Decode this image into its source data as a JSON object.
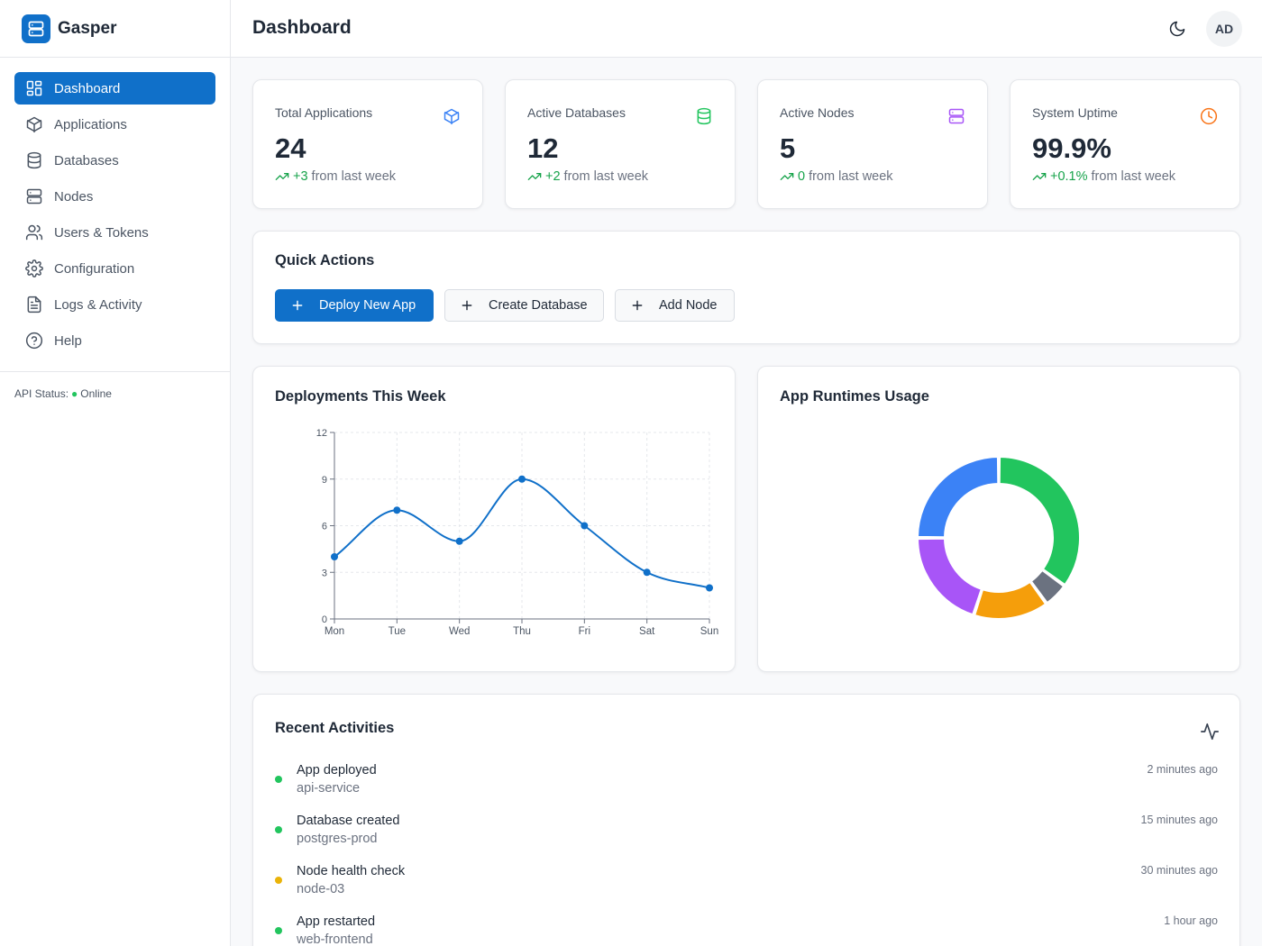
{
  "app": {
    "name": "Gasper"
  },
  "sidebar": {
    "items": [
      {
        "label": "Dashboard",
        "icon": "dashboard-icon",
        "active": true
      },
      {
        "label": "Applications",
        "icon": "box-icon"
      },
      {
        "label": "Databases",
        "icon": "database-icon"
      },
      {
        "label": "Nodes",
        "icon": "server-icon"
      },
      {
        "label": "Users & Tokens",
        "icon": "users-icon"
      },
      {
        "label": "Configuration",
        "icon": "gear-icon"
      },
      {
        "label": "Logs & Activity",
        "icon": "file-text-icon"
      },
      {
        "label": "Help",
        "icon": "help-circle-icon"
      }
    ],
    "api_status_label": "API Status:",
    "api_status_value": "Online"
  },
  "header": {
    "title": "Dashboard",
    "avatar_initials": "AD",
    "theme_icon": "moon-icon"
  },
  "stats": [
    {
      "label": "Total Applications",
      "value": "24",
      "delta": "+3",
      "suffix": "from last week",
      "icon": "box-icon",
      "color": "#3b82f6"
    },
    {
      "label": "Active Databases",
      "value": "12",
      "delta": "+2",
      "suffix": "from last week",
      "icon": "database-icon",
      "color": "#22c55e"
    },
    {
      "label": "Active Nodes",
      "value": "5",
      "delta": "0",
      "suffix": "from last week",
      "icon": "server-icon",
      "color": "#a855f7"
    },
    {
      "label": "System Uptime",
      "value": "99.9%",
      "delta": "+0.1%",
      "suffix": "from last week",
      "icon": "clock-icon",
      "color": "#f97316"
    }
  ],
  "quick_actions": {
    "title": "Quick Actions",
    "buttons": [
      {
        "label": "Deploy New App",
        "variant": "primary"
      },
      {
        "label": "Create Database",
        "variant": "secondary"
      },
      {
        "label": "Add Node",
        "variant": "secondary"
      }
    ]
  },
  "deployments": {
    "title": "Deployments This Week",
    "chart_data": {
      "type": "line",
      "categories": [
        "Mon",
        "Tue",
        "Wed",
        "Thu",
        "Fri",
        "Sat",
        "Sun"
      ],
      "values": [
        4,
        7,
        5,
        9,
        6,
        3,
        2
      ],
      "yticks": [
        0,
        3,
        6,
        9,
        12
      ],
      "ylim": [
        0,
        12
      ],
      "grid": true,
      "color": "#1070c9"
    }
  },
  "runtimes": {
    "title": "App Runtimes Usage",
    "chart_data": {
      "type": "pie",
      "donut": true,
      "values": [
        35,
        5,
        15,
        20,
        25
      ],
      "colors": [
        "#22c55e",
        "#6b7280",
        "#f59e0b",
        "#a855f7",
        "#3b82f6"
      ]
    }
  },
  "activities": {
    "title": "Recent Activities",
    "icon": "activity-icon",
    "items": [
      {
        "title": "App deployed",
        "subtitle": "api-service",
        "time": "2 minutes ago",
        "status_color": "#22c55e"
      },
      {
        "title": "Database created",
        "subtitle": "postgres-prod",
        "time": "15 minutes ago",
        "status_color": "#22c55e"
      },
      {
        "title": "Node health check",
        "subtitle": "node-03",
        "time": "30 minutes ago",
        "status_color": "#eab308"
      },
      {
        "title": "App restarted",
        "subtitle": "web-frontend",
        "time": "1 hour ago",
        "status_color": "#22c55e"
      }
    ]
  }
}
